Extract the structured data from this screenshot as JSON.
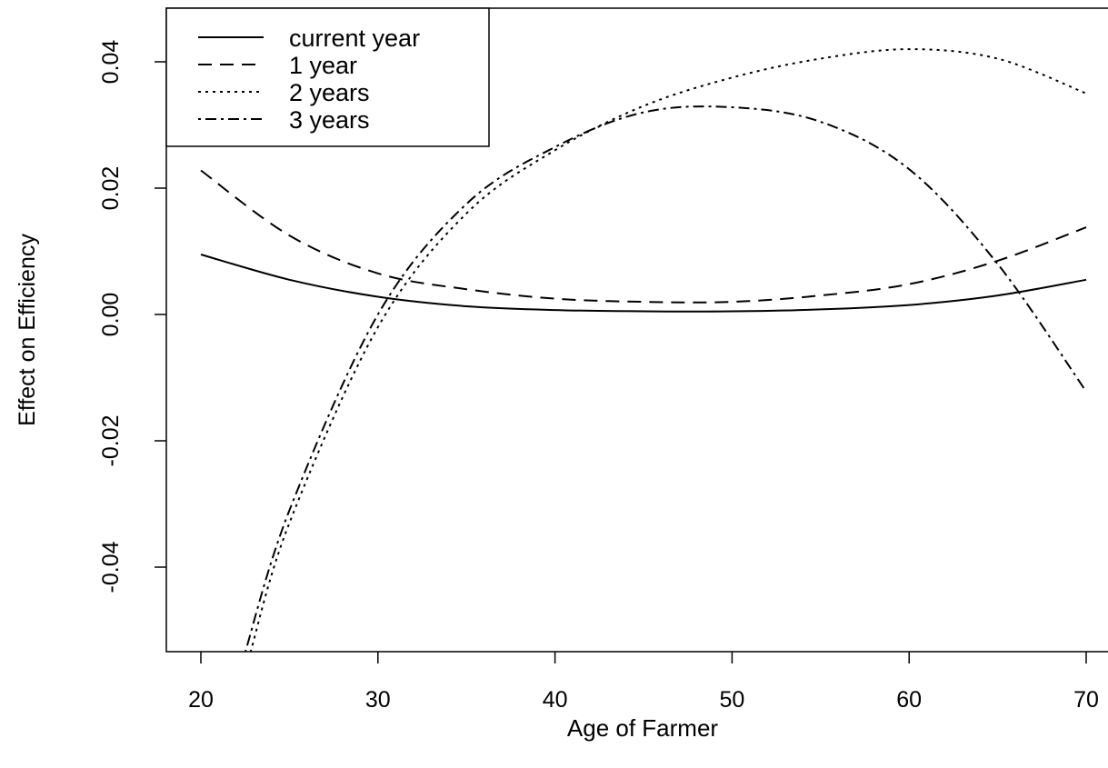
{
  "chart_data": {
    "type": "line",
    "title": "",
    "xlabel": "Age of Farmer",
    "ylabel": "Effect on Efficiency",
    "xlim": [
      20,
      70
    ],
    "ylim": [
      -0.0535,
      0.049
    ],
    "x_ticks": [
      20,
      30,
      40,
      50,
      60,
      70
    ],
    "x_tick_labels": [
      "20",
      "30",
      "40",
      "50",
      "60",
      "70"
    ],
    "y_ticks": [
      -0.04,
      -0.02,
      0.0,
      0.02,
      0.04
    ],
    "y_tick_labels": [
      "-0.04",
      "-0.02",
      "0.00",
      "0.02",
      "0.04"
    ],
    "grid": false,
    "legend_position": "top-left",
    "series": [
      {
        "name": "current year",
        "line_style": "solid",
        "x": [
          20,
          25,
          30,
          35,
          40,
          45,
          50,
          55,
          60,
          65,
          70
        ],
        "y": [
          0.0095,
          0.0055,
          0.0028,
          0.0013,
          0.0007,
          0.0005,
          0.0005,
          0.0008,
          0.0015,
          0.003,
          0.0055
        ]
      },
      {
        "name": "1 year",
        "line_style": "dashed",
        "x": [
          20,
          25,
          30,
          35,
          40,
          45,
          50,
          55,
          60,
          65,
          70
        ],
        "y": [
          0.0228,
          0.0125,
          0.0065,
          0.004,
          0.0025,
          0.002,
          0.002,
          0.003,
          0.0048,
          0.0085,
          0.0138
        ]
      },
      {
        "name": "2 years",
        "line_style": "dotted",
        "x": [
          22.8,
          25,
          30,
          35,
          40,
          45,
          50,
          55,
          60,
          65,
          70
        ],
        "y": [
          -0.0535,
          -0.033,
          -0.002,
          0.016,
          0.026,
          0.033,
          0.0375,
          0.0405,
          0.042,
          0.0405,
          0.035
        ]
      },
      {
        "name": "3 years",
        "line_style": "dot-dash",
        "x": [
          22.5,
          25,
          30,
          35,
          40,
          45,
          50,
          55,
          60,
          65,
          70
        ],
        "y": [
          -0.0535,
          -0.031,
          0.0,
          0.0175,
          0.0265,
          0.032,
          0.0328,
          0.0305,
          0.023,
          0.008,
          -0.0122
        ]
      }
    ]
  }
}
